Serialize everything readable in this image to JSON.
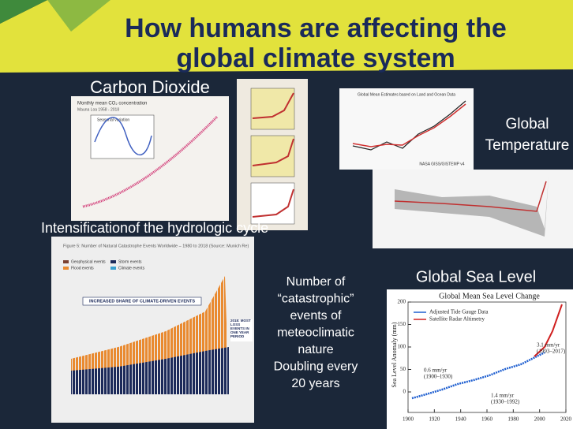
{
  "title_lines": [
    "How humans are affecting the",
    "global climate system"
  ],
  "carbon_dioxide": {
    "heading": "Carbon Dioxide",
    "chart_title": "Monthly mean CO₂ concentration",
    "chart_subtitle": "Mauna Loa 1958 - 2018",
    "inset_title": "Seasonal variation"
  },
  "global_temperature": {
    "heading_lines": [
      "Global",
      "Temperature"
    ],
    "chart_title": "Global Mean Estimates based on Land and Ocean Data",
    "chart_source": "NASA GISS/GISTEMP v4"
  },
  "hydrologic": {
    "heading": "Intensificationof the hydrologic cycle",
    "chart_title": "Figure 5: Number of Natural Catastrophe Events Worldwide – 1980 to 2018 (Source: Munich Re)",
    "legend": [
      "Geophysical events",
      "Storm events",
      "Flood events",
      "Climate events"
    ],
    "banner": "INCREASED SHARE OF CLIMATE-DRIVEN EVENTS",
    "callout": "2018: MOST LOSS EVENTS IN ONE YEAR PERIOD",
    "description_lines": [
      "Number of",
      "“catastrophic”",
      "events of",
      "meteoclimatic",
      "nature",
      "Doubling every",
      "20 years"
    ]
  },
  "sea_level": {
    "heading": "Global Sea Level",
    "chart_title": "Global Mean Sea Level Change",
    "legend": [
      "Adjusted Tide Gauge Data",
      "Satellite Radar Altimetry"
    ],
    "y_label": "Sea Level Anomaly (mm)",
    "annotations": [
      "0.6 mm/yr",
      "(1900–1930)",
      "1.4 mm/yr",
      "(1930–1992)",
      "3.1 mm/yr",
      "(1993–2017)"
    ],
    "yticks": [
      0,
      50,
      100,
      150,
      200
    ],
    "xticks": [
      1900,
      1920,
      1940,
      1960,
      1980,
      2000,
      2020
    ]
  }
}
